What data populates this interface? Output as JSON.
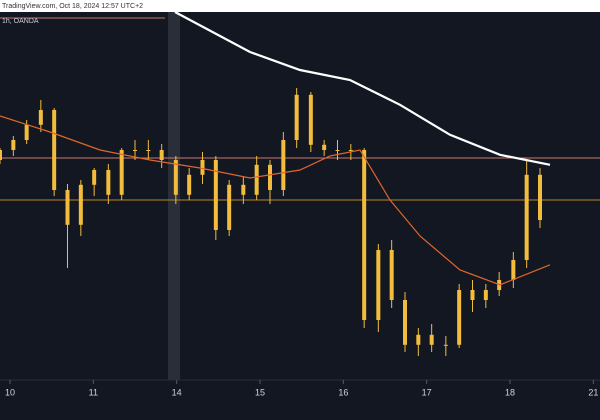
{
  "chart_data": {
    "type": "candlestick",
    "title": "TradingView.com, Oct 18, 2024 12:57 UTC+2",
    "subtitle": "1h, OANDA",
    "candle_color": "#f2bd3c",
    "x": [
      -0.12,
      0.04,
      0.2,
      0.37,
      0.53,
      0.69,
      0.85,
      1.01,
      1.18,
      1.34,
      1.5,
      1.66,
      1.82,
      1.99,
      2.15,
      2.31,
      2.47,
      2.63,
      2.8,
      2.96,
      3.12,
      3.28,
      3.44,
      3.61,
      3.77,
      3.93,
      4.09,
      4.25,
      4.42,
      4.58,
      4.74,
      4.9,
      5.06,
      5.23,
      5.39,
      5.55,
      5.71,
      5.87,
      6.04,
      6.2,
      6.36
    ],
    "open": [
      55,
      57.5,
      60,
      63.8,
      67.5,
      47.5,
      38.8,
      48.8,
      52.5,
      46.3,
      57.5,
      57.5,
      57.5,
      55,
      46.3,
      51.3,
      55,
      37.5,
      48.8,
      46.3,
      53.8,
      47.5,
      60,
      71.3,
      58.8,
      57.5,
      57.5,
      57.5,
      15,
      32.5,
      20,
      8.8,
      11.3,
      8.8,
      8.8,
      22.5,
      20,
      22.5,
      25,
      30,
      51.3
    ],
    "high": [
      58,
      61,
      65,
      70,
      68,
      49,
      50,
      53,
      54,
      58,
      60,
      60,
      59,
      56,
      53,
      57,
      56,
      50,
      51,
      56,
      55,
      62,
      73,
      72,
      60,
      60,
      59,
      58,
      34,
      35,
      22,
      13,
      14,
      11,
      24,
      25,
      24,
      27,
      32,
      55,
      53
    ],
    "low": [
      54,
      56,
      59,
      62,
      46,
      28,
      36,
      46,
      44,
      45,
      55,
      55,
      53,
      44,
      45,
      49,
      35,
      36,
      44,
      45,
      44,
      46,
      58,
      57,
      56,
      55,
      55,
      13,
      12,
      18,
      7,
      6,
      7,
      6,
      8,
      17,
      18,
      21,
      23,
      28,
      38
    ],
    "close": [
      57.5,
      60,
      63.8,
      67.5,
      47.5,
      38.8,
      48.8,
      52.5,
      46.3,
      57.5,
      57.5,
      57.5,
      55,
      46.3,
      51.3,
      55,
      37.5,
      48.8,
      46.3,
      53.8,
      47.5,
      60,
      71.3,
      58.8,
      57.5,
      57.5,
      57.5,
      15,
      32.5,
      20,
      8.8,
      11.3,
      8.8,
      8.8,
      22.5,
      20,
      22.5,
      25,
      30,
      51.3,
      40
    ],
    "overlays": [
      {
        "color": "#ffffff",
        "x": [
          1.98,
          2.88,
          3.48,
          4.08,
          4.68,
          5.28,
          5.88,
          6.48
        ],
        "values": [
          92,
          82,
          77.5,
          75,
          68.8,
          61.3,
          56.3,
          53.8
        ]
      },
      {
        "color": "#e0662a",
        "x": [
          -0.12,
          0.48,
          1.08,
          1.68,
          2.28,
          2.88,
          3.48,
          3.84,
          4.2,
          4.56,
          4.92,
          5.4,
          5.88,
          6.48
        ],
        "values": [
          66,
          62,
          57.5,
          55,
          53,
          50.5,
          52.5,
          56,
          57.5,
          45,
          36,
          27.5,
          23.8,
          28.8
        ]
      }
    ],
    "reference_lines": [
      {
        "value": 55.5,
        "color": "#c97a6a"
      },
      {
        "value": 45,
        "color": "#b8862c"
      }
    ],
    "xlim": [
      -0.12,
      7.08
    ],
    "ylim": [
      0,
      92
    ],
    "xticks": [
      {
        "value": 0,
        "label": "10"
      },
      {
        "value": 1,
        "label": "11"
      },
      {
        "value": 2,
        "label": "14"
      },
      {
        "value": 3,
        "label": "15"
      },
      {
        "value": 4,
        "label": "16"
      },
      {
        "value": 5,
        "label": "17"
      },
      {
        "value": 6,
        "label": "18"
      },
      {
        "value": 7,
        "label": "21"
      }
    ]
  }
}
